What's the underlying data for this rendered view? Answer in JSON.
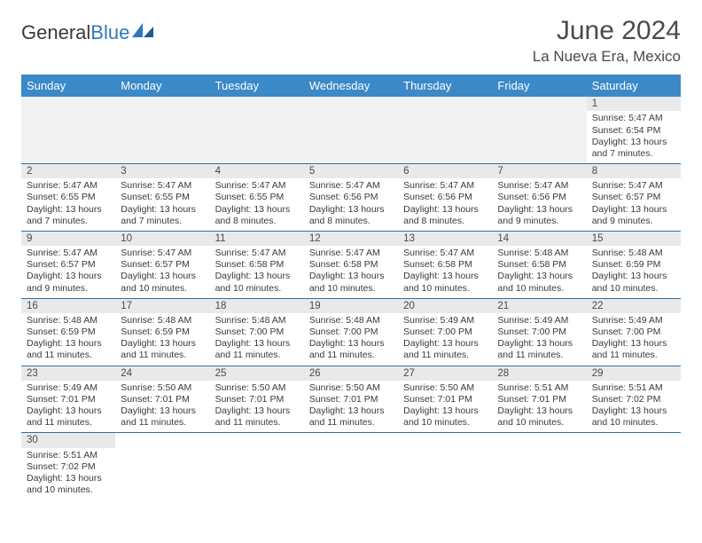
{
  "brand": {
    "part1": "General",
    "part2": "Blue"
  },
  "title": "June 2024",
  "location": "La Nueva Era, Mexico",
  "colors": {
    "header_bg": "#3b89c7",
    "header_text": "#ffffff",
    "daynum_bg": "#e9e9e9",
    "border": "#2f6fa8",
    "brand_blue": "#2f7abf",
    "text": "#3a3a3a"
  },
  "weekdays": [
    "Sunday",
    "Monday",
    "Tuesday",
    "Wednesday",
    "Thursday",
    "Friday",
    "Saturday"
  ],
  "weeks": [
    [
      null,
      null,
      null,
      null,
      null,
      null,
      {
        "n": "1",
        "sr": "Sunrise: 5:47 AM",
        "ss": "Sunset: 6:54 PM",
        "d1": "Daylight: 13 hours",
        "d2": "and 7 minutes."
      }
    ],
    [
      {
        "n": "2",
        "sr": "Sunrise: 5:47 AM",
        "ss": "Sunset: 6:55 PM",
        "d1": "Daylight: 13 hours",
        "d2": "and 7 minutes."
      },
      {
        "n": "3",
        "sr": "Sunrise: 5:47 AM",
        "ss": "Sunset: 6:55 PM",
        "d1": "Daylight: 13 hours",
        "d2": "and 7 minutes."
      },
      {
        "n": "4",
        "sr": "Sunrise: 5:47 AM",
        "ss": "Sunset: 6:55 PM",
        "d1": "Daylight: 13 hours",
        "d2": "and 8 minutes."
      },
      {
        "n": "5",
        "sr": "Sunrise: 5:47 AM",
        "ss": "Sunset: 6:56 PM",
        "d1": "Daylight: 13 hours",
        "d2": "and 8 minutes."
      },
      {
        "n": "6",
        "sr": "Sunrise: 5:47 AM",
        "ss": "Sunset: 6:56 PM",
        "d1": "Daylight: 13 hours",
        "d2": "and 8 minutes."
      },
      {
        "n": "7",
        "sr": "Sunrise: 5:47 AM",
        "ss": "Sunset: 6:56 PM",
        "d1": "Daylight: 13 hours",
        "d2": "and 9 minutes."
      },
      {
        "n": "8",
        "sr": "Sunrise: 5:47 AM",
        "ss": "Sunset: 6:57 PM",
        "d1": "Daylight: 13 hours",
        "d2": "and 9 minutes."
      }
    ],
    [
      {
        "n": "9",
        "sr": "Sunrise: 5:47 AM",
        "ss": "Sunset: 6:57 PM",
        "d1": "Daylight: 13 hours",
        "d2": "and 9 minutes."
      },
      {
        "n": "10",
        "sr": "Sunrise: 5:47 AM",
        "ss": "Sunset: 6:57 PM",
        "d1": "Daylight: 13 hours",
        "d2": "and 10 minutes."
      },
      {
        "n": "11",
        "sr": "Sunrise: 5:47 AM",
        "ss": "Sunset: 6:58 PM",
        "d1": "Daylight: 13 hours",
        "d2": "and 10 minutes."
      },
      {
        "n": "12",
        "sr": "Sunrise: 5:47 AM",
        "ss": "Sunset: 6:58 PM",
        "d1": "Daylight: 13 hours",
        "d2": "and 10 minutes."
      },
      {
        "n": "13",
        "sr": "Sunrise: 5:47 AM",
        "ss": "Sunset: 6:58 PM",
        "d1": "Daylight: 13 hours",
        "d2": "and 10 minutes."
      },
      {
        "n": "14",
        "sr": "Sunrise: 5:48 AM",
        "ss": "Sunset: 6:58 PM",
        "d1": "Daylight: 13 hours",
        "d2": "and 10 minutes."
      },
      {
        "n": "15",
        "sr": "Sunrise: 5:48 AM",
        "ss": "Sunset: 6:59 PM",
        "d1": "Daylight: 13 hours",
        "d2": "and 10 minutes."
      }
    ],
    [
      {
        "n": "16",
        "sr": "Sunrise: 5:48 AM",
        "ss": "Sunset: 6:59 PM",
        "d1": "Daylight: 13 hours",
        "d2": "and 11 minutes."
      },
      {
        "n": "17",
        "sr": "Sunrise: 5:48 AM",
        "ss": "Sunset: 6:59 PM",
        "d1": "Daylight: 13 hours",
        "d2": "and 11 minutes."
      },
      {
        "n": "18",
        "sr": "Sunrise: 5:48 AM",
        "ss": "Sunset: 7:00 PM",
        "d1": "Daylight: 13 hours",
        "d2": "and 11 minutes."
      },
      {
        "n": "19",
        "sr": "Sunrise: 5:48 AM",
        "ss": "Sunset: 7:00 PM",
        "d1": "Daylight: 13 hours",
        "d2": "and 11 minutes."
      },
      {
        "n": "20",
        "sr": "Sunrise: 5:49 AM",
        "ss": "Sunset: 7:00 PM",
        "d1": "Daylight: 13 hours",
        "d2": "and 11 minutes."
      },
      {
        "n": "21",
        "sr": "Sunrise: 5:49 AM",
        "ss": "Sunset: 7:00 PM",
        "d1": "Daylight: 13 hours",
        "d2": "and 11 minutes."
      },
      {
        "n": "22",
        "sr": "Sunrise: 5:49 AM",
        "ss": "Sunset: 7:00 PM",
        "d1": "Daylight: 13 hours",
        "d2": "and 11 minutes."
      }
    ],
    [
      {
        "n": "23",
        "sr": "Sunrise: 5:49 AM",
        "ss": "Sunset: 7:01 PM",
        "d1": "Daylight: 13 hours",
        "d2": "and 11 minutes."
      },
      {
        "n": "24",
        "sr": "Sunrise: 5:50 AM",
        "ss": "Sunset: 7:01 PM",
        "d1": "Daylight: 13 hours",
        "d2": "and 11 minutes."
      },
      {
        "n": "25",
        "sr": "Sunrise: 5:50 AM",
        "ss": "Sunset: 7:01 PM",
        "d1": "Daylight: 13 hours",
        "d2": "and 11 minutes."
      },
      {
        "n": "26",
        "sr": "Sunrise: 5:50 AM",
        "ss": "Sunset: 7:01 PM",
        "d1": "Daylight: 13 hours",
        "d2": "and 11 minutes."
      },
      {
        "n": "27",
        "sr": "Sunrise: 5:50 AM",
        "ss": "Sunset: 7:01 PM",
        "d1": "Daylight: 13 hours",
        "d2": "and 10 minutes."
      },
      {
        "n": "28",
        "sr": "Sunrise: 5:51 AM",
        "ss": "Sunset: 7:01 PM",
        "d1": "Daylight: 13 hours",
        "d2": "and 10 minutes."
      },
      {
        "n": "29",
        "sr": "Sunrise: 5:51 AM",
        "ss": "Sunset: 7:02 PM",
        "d1": "Daylight: 13 hours",
        "d2": "and 10 minutes."
      }
    ],
    [
      {
        "n": "30",
        "sr": "Sunrise: 5:51 AM",
        "ss": "Sunset: 7:02 PM",
        "d1": "Daylight: 13 hours",
        "d2": "and 10 minutes."
      },
      null,
      null,
      null,
      null,
      null,
      null
    ]
  ]
}
